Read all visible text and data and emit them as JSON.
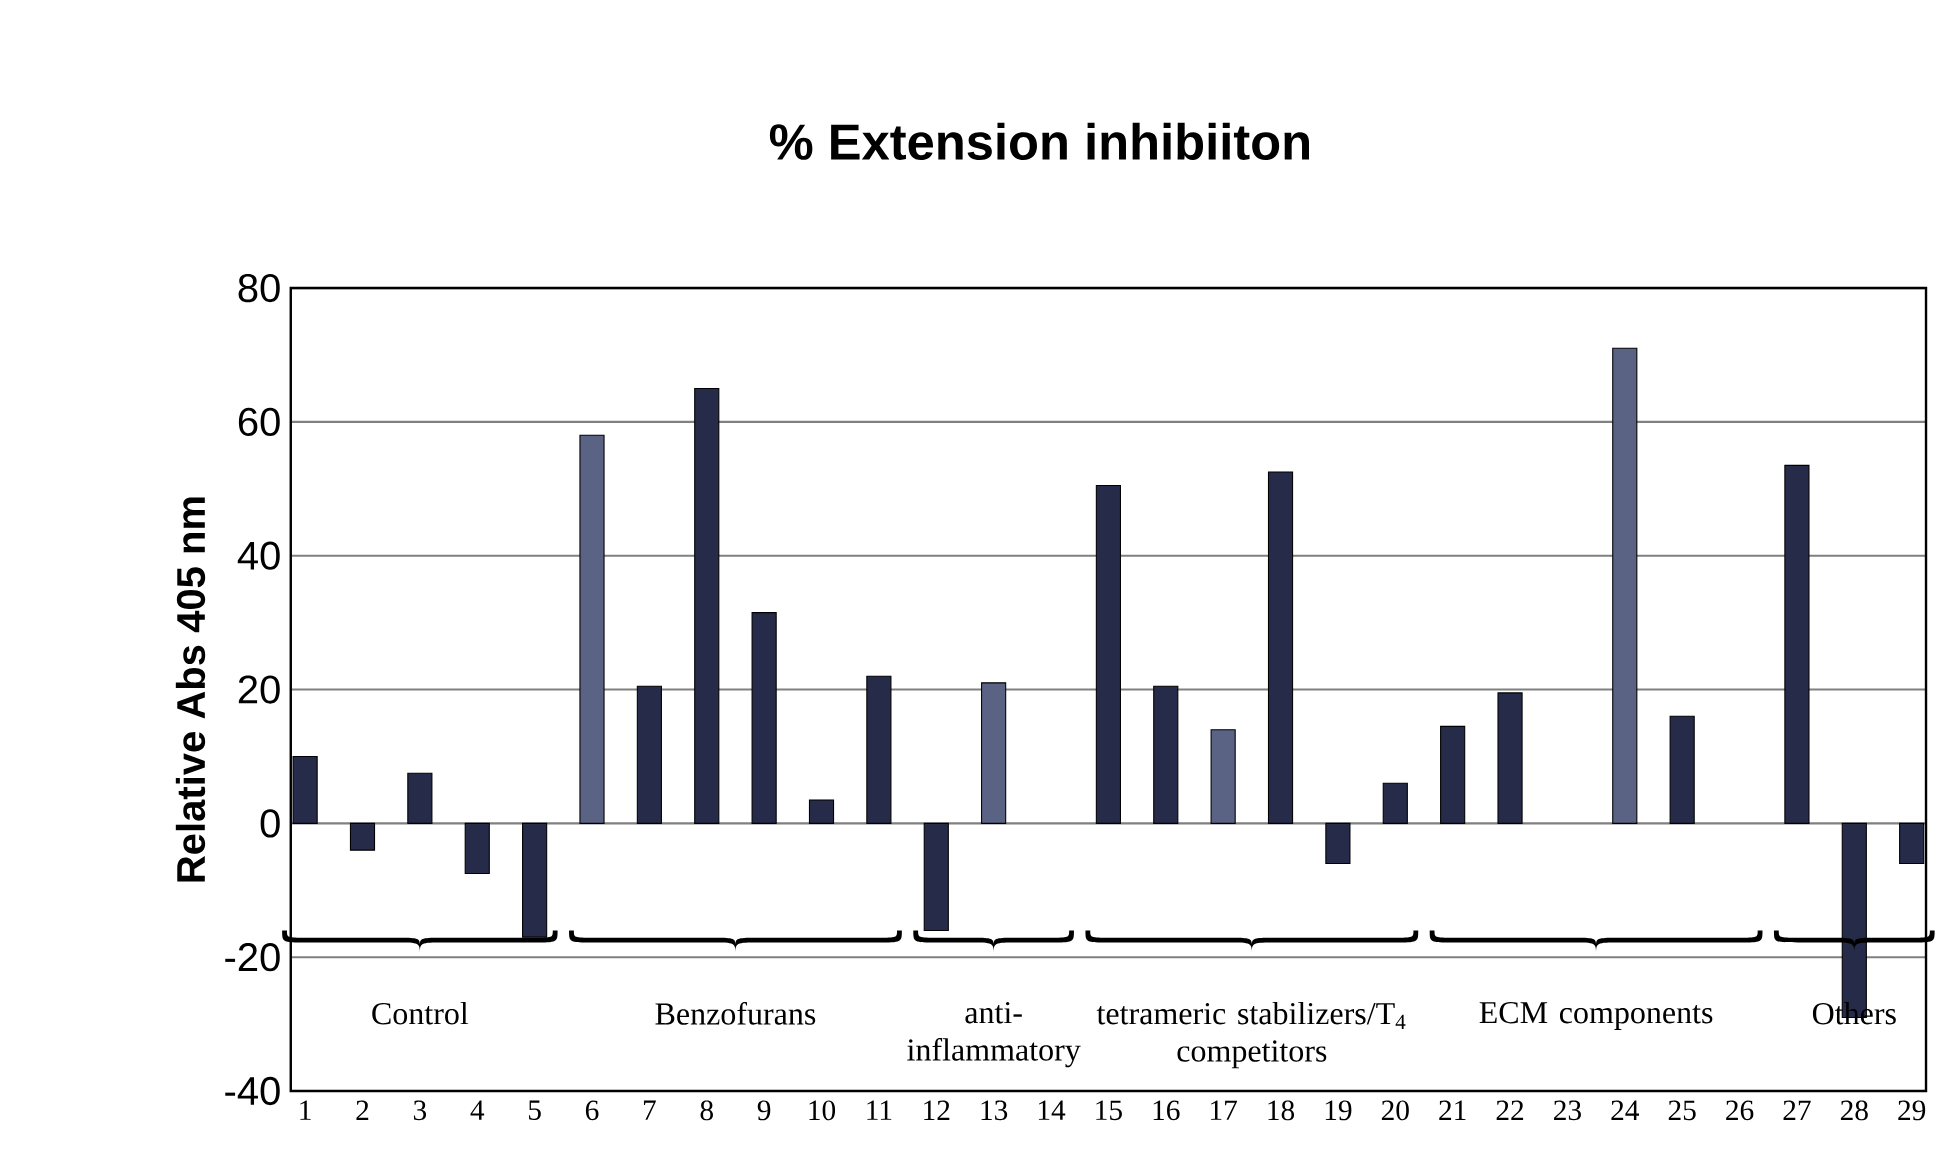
{
  "chart_data": {
    "type": "bar",
    "title": "% Extension inhibiiton",
    "ylabel": "Relative Abs 405 nm",
    "categories": [
      "1",
      "2",
      "3",
      "4",
      "5",
      "6",
      "7",
      "8",
      "9",
      "10",
      "11",
      "12",
      "13",
      "14",
      "15",
      "16",
      "17",
      "18",
      "19",
      "20",
      "21",
      "22",
      "23",
      "24",
      "25",
      "26",
      "27",
      "28",
      "29"
    ],
    "values": [
      10,
      -4,
      7.5,
      -7.5,
      -17,
      58,
      20.5,
      65,
      31.5,
      3.5,
      22,
      -16,
      21,
      0,
      50.5,
      20.5,
      14,
      52.5,
      -6,
      6,
      14.5,
      19.5,
      0,
      71,
      16,
      0,
      53.5,
      -29,
      -6
    ],
    "colors": [
      "#262b4a",
      "#262b4a",
      "#262b4a",
      "#262b4a",
      "#262b4a",
      "#5b6385",
      "#262b4a",
      "#262b4a",
      "#262b4a",
      "#262b4a",
      "#262b4a",
      "#262b4a",
      "#5b6385",
      "#262b4a",
      "#262b4a",
      "#262b4a",
      "#5b6385",
      "#262b4a",
      "#262b4a",
      "#262b4a",
      "#262b4a",
      "#262b4a",
      "#262b4a",
      "#5b6385",
      "#262b4a",
      "#262b4a",
      "#262b4a",
      "#262b4a",
      "#262b4a"
    ],
    "ylim": [
      -40,
      80
    ],
    "yticks": [
      -40,
      -20,
      0,
      20,
      40,
      60,
      80
    ],
    "grid": "y",
    "annotations": [
      "Control",
      "Benzofurans",
      "anti-inflammatory",
      "tetrameric stabilizers/T$_{4}$ competitors",
      "ECM components",
      "Others"
    ]
  }
}
